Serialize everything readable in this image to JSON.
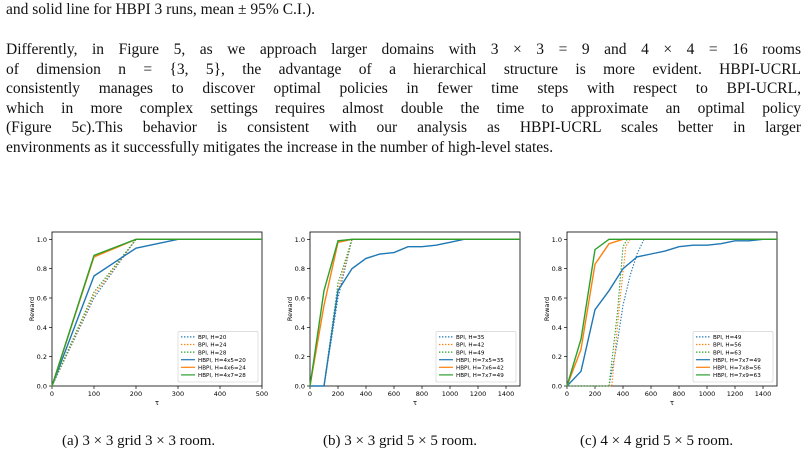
{
  "text": {
    "top_line": "and solid line for HBPI 3 runs, mean ± 95% C.I.).",
    "paragraph": [
      "Differently, in Figure 5, as we approach larger domains with 3 × 3 = 9 and 4 × 4 = 16 rooms",
      "of dimension n = {3, 5}, the advantage of a hierarchical structure is more evident. HBPI-UCRL",
      "consistently manages to discover optimal policies in fewer time steps with respect to BPI-UCRL,",
      "which in more complex settings requires almost double the time to approximate an optimal policy",
      "(Figure 5c).This behavior is consistent with our analysis as HBPI-UCRL scales better in larger",
      "environments as it successfully mitigates the increase in the number of high-level states."
    ],
    "captions": [
      "(a) 3 × 3 grid 3 × 3 room.",
      "(b) 3 × 3 grid 5 × 5 room.",
      "(c) 4 × 4 grid 5 × 5 room."
    ]
  },
  "colors": {
    "blue": "#1f77b4",
    "orange": "#ff7f0e",
    "green": "#2ca02c"
  },
  "chart_data": [
    {
      "type": "line",
      "xlabel": "τ",
      "ylabel": "Reward",
      "xlim": [
        0,
        500
      ],
      "ylim": [
        0,
        1.05
      ],
      "xticks": [
        0,
        100,
        200,
        300,
        400,
        500
      ],
      "yticks": [
        "0.0",
        "0.2",
        "0.4",
        "0.6",
        "0.8",
        "1.0"
      ],
      "legend_position": "bottom-right",
      "series": [
        {
          "name": "BPI, H=20",
          "style": "dotted",
          "color": "#1f77b4",
          "x": [
            0,
            100,
            200,
            500
          ],
          "y": [
            0,
            0.6,
            1.0,
            1.0
          ]
        },
        {
          "name": "BPI, H=24",
          "style": "dotted",
          "color": "#ff7f0e",
          "x": [
            0,
            100,
            200,
            500
          ],
          "y": [
            0,
            0.62,
            1.0,
            1.0
          ]
        },
        {
          "name": "BPI, H=28",
          "style": "dotted",
          "color": "#2ca02c",
          "x": [
            0,
            100,
            200,
            500
          ],
          "y": [
            0,
            0.64,
            1.0,
            1.0
          ]
        },
        {
          "name": "HBPI, H=4x5=20",
          "style": "solid",
          "color": "#1f77b4",
          "x": [
            0,
            100,
            200,
            300,
            500
          ],
          "y": [
            0,
            0.75,
            0.94,
            1.0,
            1.0
          ]
        },
        {
          "name": "HBPI, H=4x6=24",
          "style": "solid",
          "color": "#ff7f0e",
          "x": [
            0,
            100,
            200,
            500
          ],
          "y": [
            0,
            0.88,
            1.0,
            1.0
          ]
        },
        {
          "name": "HBPI, H=4x7=28",
          "style": "solid",
          "color": "#2ca02c",
          "x": [
            0,
            100,
            200,
            500
          ],
          "y": [
            0,
            0.89,
            1.0,
            1.0
          ]
        }
      ]
    },
    {
      "type": "line",
      "xlabel": "τ",
      "ylabel": "Reward",
      "xlim": [
        0,
        1500
      ],
      "ylim": [
        0,
        1.05
      ],
      "xticks": [
        0,
        200,
        400,
        600,
        800,
        1000,
        1200,
        1400
      ],
      "yticks": [
        "0.0",
        "0.2",
        "0.4",
        "0.6",
        "0.8",
        "1.0"
      ],
      "legend_position": "bottom-right",
      "series": [
        {
          "name": "BPI, H=35",
          "style": "dotted",
          "color": "#1f77b4",
          "x": [
            0,
            100,
            200,
            300,
            1500
          ],
          "y": [
            0,
            0,
            0.6,
            1.0,
            1.0
          ]
        },
        {
          "name": "BPI, H=42",
          "style": "dotted",
          "color": "#ff7f0e",
          "x": [
            0,
            100,
            200,
            300,
            1500
          ],
          "y": [
            0,
            0,
            0.65,
            1.0,
            1.0
          ]
        },
        {
          "name": "BPI, H=49",
          "style": "dotted",
          "color": "#2ca02c",
          "x": [
            0,
            100,
            200,
            300,
            1500
          ],
          "y": [
            0,
            0,
            0.7,
            1.0,
            1.0
          ]
        },
        {
          "name": "HBPI, H=7x5=35",
          "style": "solid",
          "color": "#1f77b4",
          "x": [
            0,
            100,
            200,
            300,
            400,
            500,
            600,
            700,
            800,
            900,
            1000,
            1100,
            1500
          ],
          "y": [
            0,
            0,
            0.65,
            0.8,
            0.87,
            0.9,
            0.91,
            0.95,
            0.95,
            0.96,
            0.98,
            1.0,
            1.0
          ]
        },
        {
          "name": "HBPI, H=7x6=42",
          "style": "solid",
          "color": "#ff7f0e",
          "x": [
            0,
            100,
            200,
            300,
            1500
          ],
          "y": [
            0,
            0.55,
            0.98,
            1.0,
            1.0
          ]
        },
        {
          "name": "HBPI, H=7x7=49",
          "style": "solid",
          "color": "#2ca02c",
          "x": [
            0,
            100,
            200,
            300,
            1500
          ],
          "y": [
            0,
            0.65,
            0.99,
            1.0,
            1.0
          ]
        }
      ]
    },
    {
      "type": "line",
      "xlabel": "τ",
      "ylabel": "Reward",
      "xlim": [
        0,
        1500
      ],
      "ylim": [
        0,
        1.05
      ],
      "xticks": [
        0,
        200,
        400,
        600,
        800,
        1000,
        1200,
        1400
      ],
      "yticks": [
        "0.0",
        "0.2",
        "0.4",
        "0.6",
        "0.8",
        "1.0"
      ],
      "legend_position": "bottom-right",
      "series": [
        {
          "name": "BPI, H=49",
          "style": "dotted",
          "color": "#1f77b4",
          "x": [
            0,
            300,
            360,
            400,
            450,
            500,
            550,
            1500
          ],
          "y": [
            0,
            0,
            0.3,
            0.55,
            0.75,
            0.9,
            1.0,
            1.0
          ]
        },
        {
          "name": "BPI, H=56",
          "style": "dotted",
          "color": "#ff7f0e",
          "x": [
            0,
            320,
            380,
            420,
            450,
            1500
          ],
          "y": [
            0,
            0,
            0.6,
            0.95,
            1.0,
            1.0
          ]
        },
        {
          "name": "BPI, H=63",
          "style": "dotted",
          "color": "#2ca02c",
          "x": [
            0,
            300,
            360,
            400,
            430,
            1500
          ],
          "y": [
            0,
            0,
            0.5,
            0.95,
            1.0,
            1.0
          ]
        },
        {
          "name": "HBPI, H=7x7=49",
          "style": "solid",
          "color": "#1f77b4",
          "x": [
            0,
            100,
            200,
            300,
            400,
            500,
            600,
            700,
            800,
            900,
            1000,
            1100,
            1200,
            1300,
            1400,
            1500
          ],
          "y": [
            0,
            0.1,
            0.52,
            0.65,
            0.8,
            0.88,
            0.9,
            0.92,
            0.95,
            0.96,
            0.96,
            0.97,
            0.99,
            0.99,
            1.0,
            1.0
          ]
        },
        {
          "name": "HBPI, H=7x8=56",
          "style": "solid",
          "color": "#ff7f0e",
          "x": [
            0,
            100,
            200,
            300,
            400,
            1500
          ],
          "y": [
            0,
            0.25,
            0.83,
            0.97,
            1.0,
            1.0
          ]
        },
        {
          "name": "HBPI, H=7x9=63",
          "style": "solid",
          "color": "#2ca02c",
          "x": [
            0,
            100,
            200,
            300,
            1500
          ],
          "y": [
            0,
            0.32,
            0.93,
            1.0,
            1.0
          ]
        }
      ]
    }
  ]
}
